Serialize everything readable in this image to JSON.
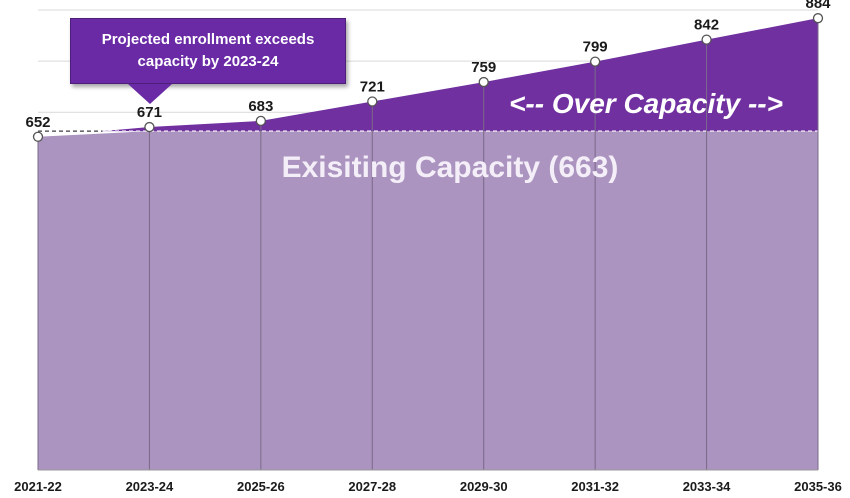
{
  "chart_data": {
    "type": "area",
    "categories": [
      "2021-22",
      "2023-24",
      "2025-26",
      "2027-28",
      "2029-30",
      "2031-32",
      "2033-34",
      "2035-36"
    ],
    "values": [
      652,
      671,
      683,
      721,
      759,
      799,
      842,
      884
    ],
    "capacity": 663,
    "capacity_label": "Exisiting Capacity (663)",
    "over_label": "<-- Over Capacity -->",
    "callout": "Projected enrollment exceeds capacity by 2023-24",
    "ylim": [
      0,
      900
    ],
    "grid": true,
    "colors": {
      "capacity_fill": "#ab94bf",
      "over_fill": "#7030a0",
      "callout_bg": "#6a2aa6",
      "gridline": "#d9d9d9"
    }
  }
}
